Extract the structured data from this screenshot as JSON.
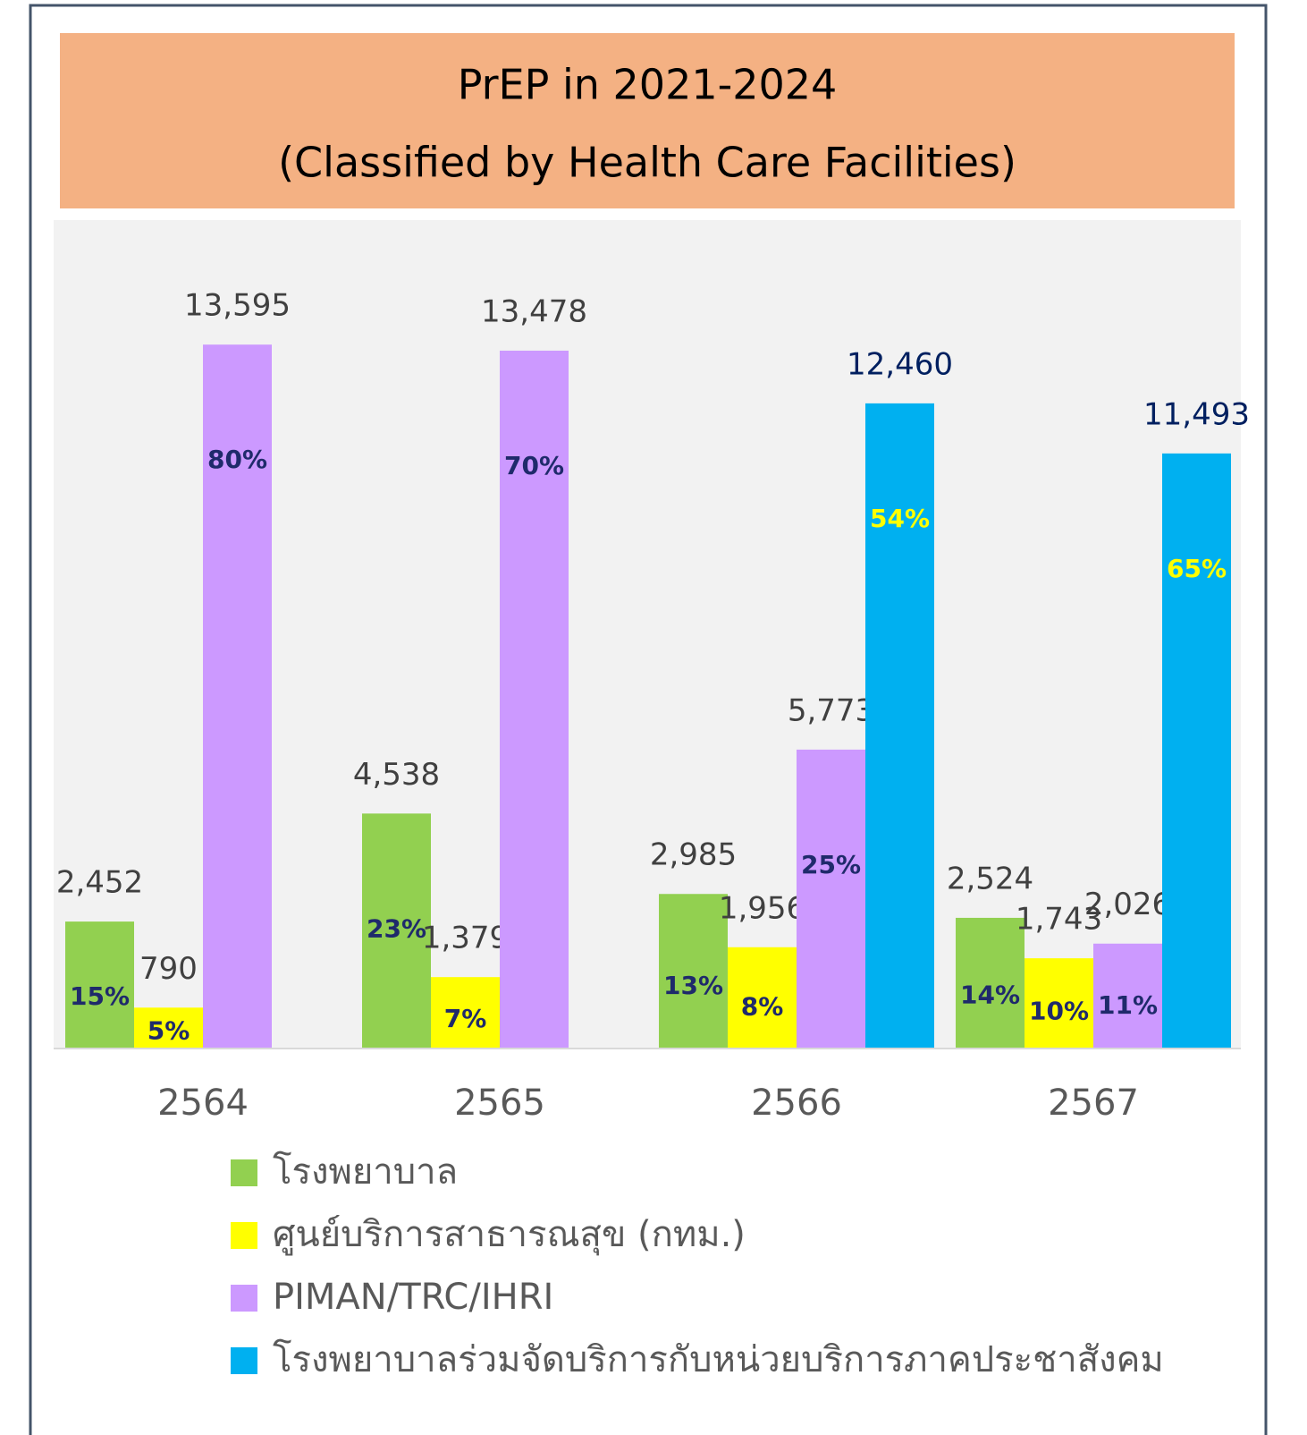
{
  "chart_data": {
    "type": "bar",
    "title": "PrEP in 2021-2024",
    "subtitle": "(Classified by Health Care Facilities)",
    "categories": [
      "2564",
      "2565",
      "2566",
      "2567"
    ],
    "ylim": [
      0,
      16000
    ],
    "series": [
      {
        "name": "โรงพยาบาล",
        "color": "#92d050",
        "label_color": "#404040",
        "values": [
          2452,
          4538,
          2985,
          2524
        ],
        "value_labels": [
          "2,452",
          "4,538",
          "2,985",
          "2,524"
        ],
        "shares": [
          15,
          23,
          13,
          14
        ],
        "share_labels": [
          "15%",
          "23%",
          "13%",
          "14%"
        ],
        "share_color": "#1f2a6b"
      },
      {
        "name": "ศูนย์บริการสาธารณสุข (กทม.)",
        "color": "#ffff00",
        "label_color": "#404040",
        "values": [
          790,
          1379,
          1956,
          1743
        ],
        "value_labels": [
          "790",
          "1,379",
          "1,956",
          "1,743"
        ],
        "shares": [
          5,
          7,
          8,
          10
        ],
        "share_labels": [
          "5%",
          "7%",
          "8%",
          "10%"
        ],
        "share_color": "#1f2a6b"
      },
      {
        "name": "PIMAN/TRC/IHRI",
        "color": "#cc99ff",
        "label_color": "#404040",
        "values": [
          13595,
          13478,
          5773,
          2026
        ],
        "value_labels": [
          "13,595",
          "13,478",
          "5,773",
          "2,026"
        ],
        "shares": [
          80,
          70,
          25,
          11
        ],
        "share_labels": [
          "80%",
          "70%",
          "25%",
          "11%"
        ],
        "share_color": "#1f2a6b"
      },
      {
        "name": "โรงพยาบาลร่วมจัดบริการกับหน่วยบริการภาคประชาสังคม",
        "color": "#00b0f0",
        "label_color": "#002060",
        "values": [
          null,
          null,
          12460,
          11493
        ],
        "value_labels": [
          null,
          null,
          "12,460",
          "11,493"
        ],
        "shares": [
          null,
          null,
          54,
          65
        ],
        "share_labels": [
          null,
          null,
          "54%",
          "65%"
        ],
        "share_color": "#ffff00"
      }
    ]
  }
}
